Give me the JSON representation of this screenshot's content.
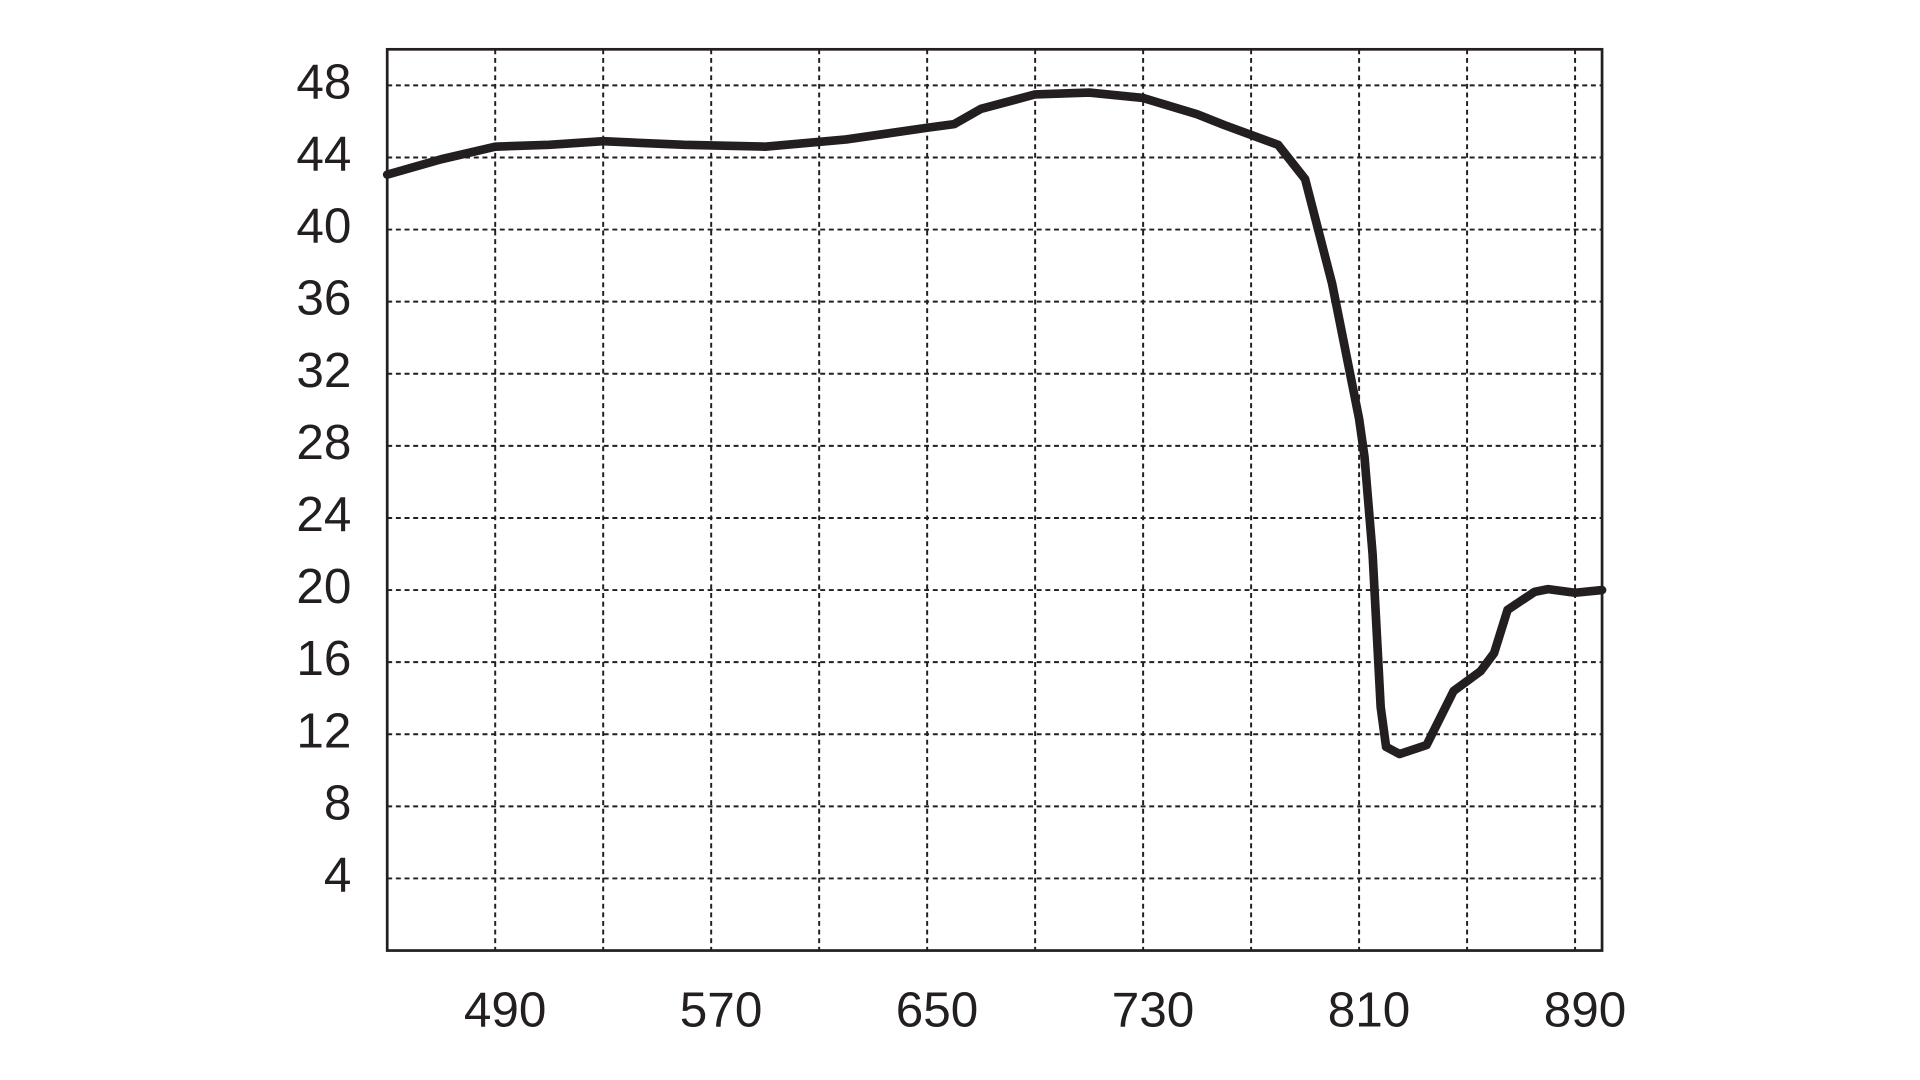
{
  "chart_data": {
    "type": "line",
    "x": [
      450,
      470,
      490,
      510,
      530,
      560,
      590,
      620,
      650,
      660,
      670,
      690,
      710,
      730,
      750,
      760,
      780,
      790,
      800,
      810,
      812,
      815,
      818,
      820,
      825,
      835,
      845,
      855,
      860,
      865,
      875,
      880,
      890,
      900
    ],
    "series": [
      {
        "color": "#231f20",
        "values": [
          43.05,
          43.9,
          44.6,
          44.7,
          44.9,
          44.7,
          44.6,
          45.0,
          45.65,
          45.85,
          46.7,
          47.5,
          47.6,
          47.3,
          46.4,
          45.8,
          44.7,
          42.8,
          37.0,
          29.5,
          27.4,
          22.0,
          13.5,
          11.3,
          10.9,
          11.4,
          14.4,
          15.5,
          16.5,
          18.9,
          19.9,
          20.05,
          19.85,
          20.0
        ]
      }
    ],
    "xlim": [
      450,
      900
    ],
    "xticks": [
      490,
      570,
      650,
      730,
      810,
      890
    ],
    "x_minor_ticks": [
      530,
      610,
      690,
      770,
      850
    ],
    "ylim": [
      0,
      50
    ],
    "yticks": [
      4,
      8,
      12,
      16,
      20,
      24,
      28,
      32,
      36,
      40,
      44,
      48
    ],
    "grid": true
  }
}
